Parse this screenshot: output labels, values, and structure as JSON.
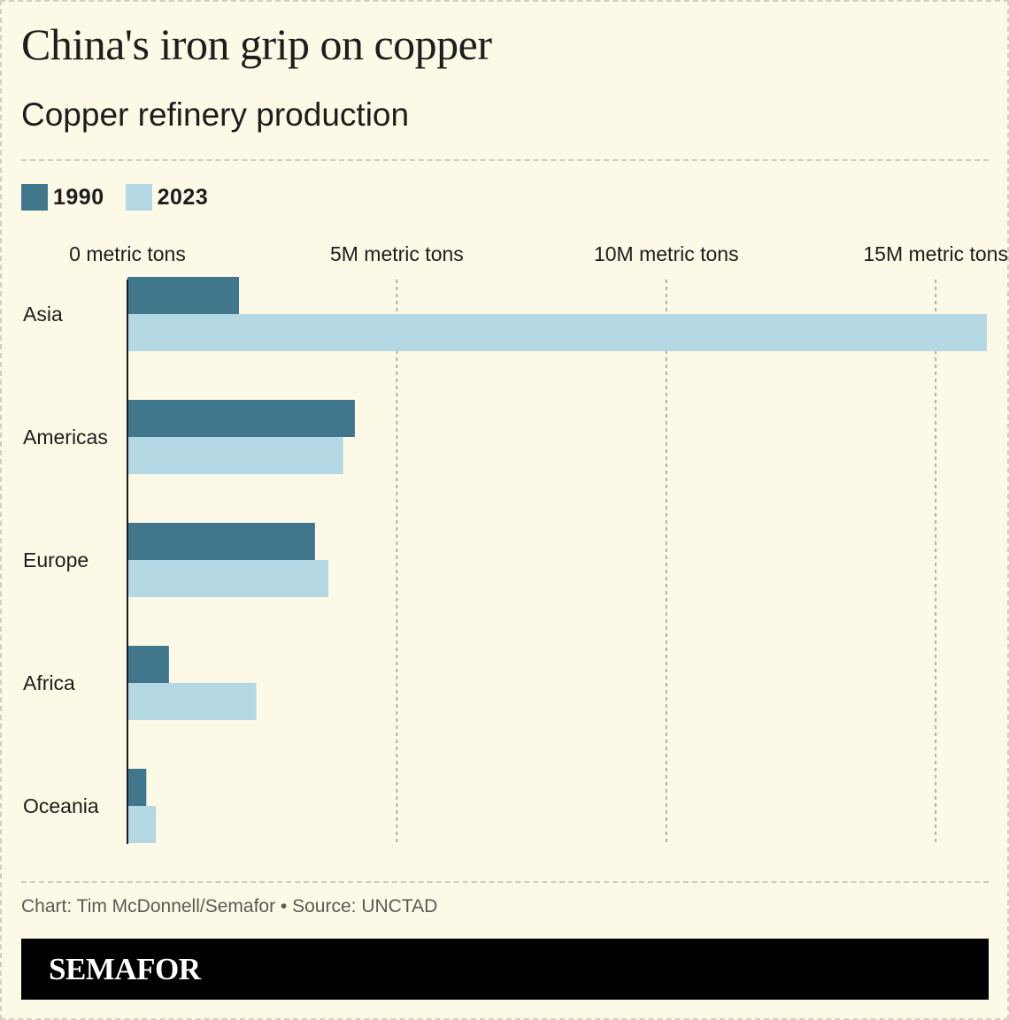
{
  "title": "China's iron grip on copper",
  "subtitle": "Copper refinery production",
  "credit": "Chart: Tim McDonnell/Semafor • Source: UNCTAD",
  "brand": "SEMAFOR",
  "colors": {
    "background": "#fcf9e6",
    "series_1990": "#41778d",
    "series_2023": "#b5d9e4",
    "gridline": "#9a9a92",
    "axis": "#1d1d1b",
    "text": "#1d1d1b"
  },
  "chart_data": {
    "type": "bar",
    "orientation": "horizontal",
    "categories": [
      "Asia",
      "Americas",
      "Europe",
      "Africa",
      "Oceania"
    ],
    "series": [
      {
        "name": "1990",
        "color": "#41778d",
        "values": [
          2.07,
          4.22,
          3.48,
          0.77,
          0.35
        ]
      },
      {
        "name": "2023",
        "color": "#b5d9e4",
        "values": [
          15.95,
          4.0,
          3.73,
          2.39,
          0.53
        ]
      }
    ],
    "x_ticks": [
      {
        "value": 0,
        "label": "0 metric tons"
      },
      {
        "value": 5,
        "label": "5M metric tons"
      },
      {
        "value": 10,
        "label": "10M metric tons"
      },
      {
        "value": 15,
        "label": "15M metric tons"
      }
    ],
    "x_units": "million metric tons",
    "xlim": [
      0,
      15.95
    ],
    "grid": true,
    "legend_position": "top-left"
  }
}
